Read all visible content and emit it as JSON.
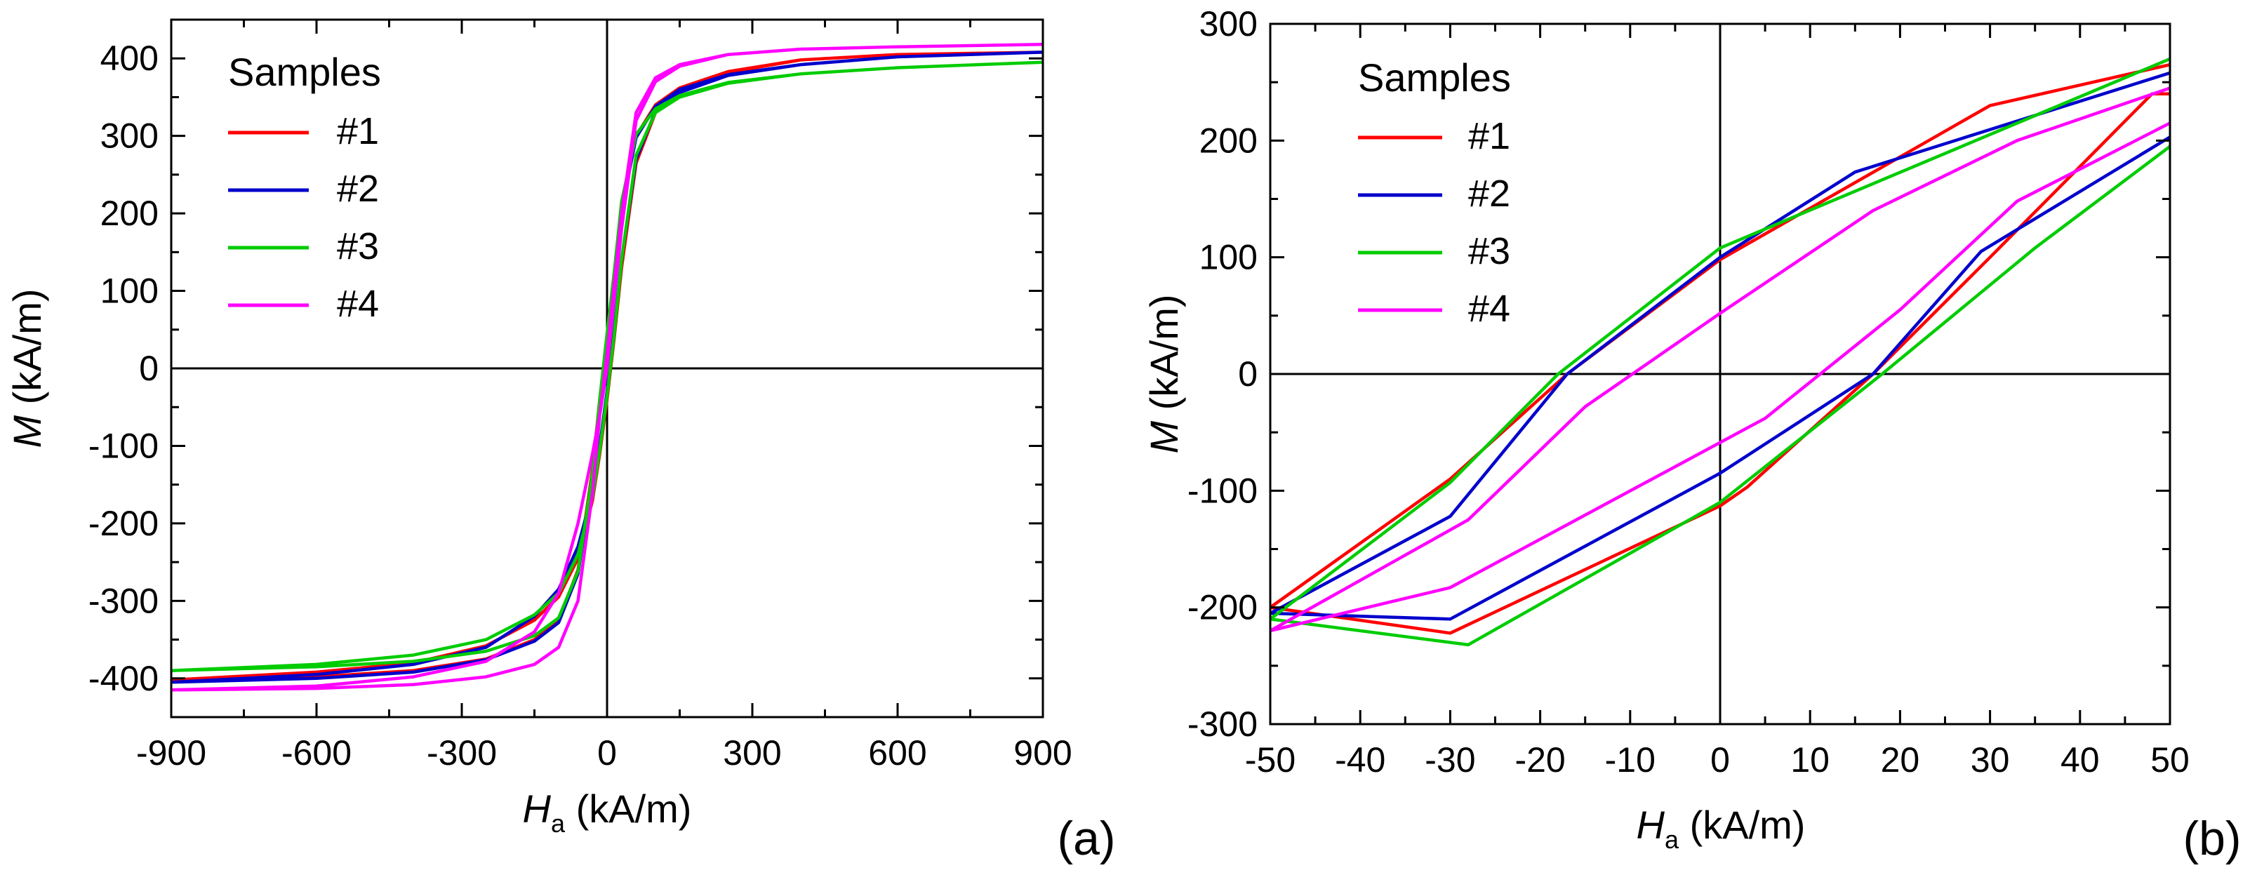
{
  "chart_data": [
    {
      "id": "a",
      "type": "line",
      "panel_label": "(a)",
      "title": "",
      "xlabel_main": "H",
      "xlabel_sub": "a",
      "xlabel_unit": " (kA/m)",
      "ylabel_main": "M",
      "ylabel_unit": " (kA/m)",
      "xlim": [
        -900,
        900
      ],
      "ylim": [
        -450,
        450
      ],
      "xticks": [
        -900,
        -600,
        -300,
        0,
        300,
        600,
        900
      ],
      "yticks": [
        -400,
        -300,
        -200,
        -100,
        0,
        100,
        200,
        300,
        400
      ],
      "xtick_labels": [
        "-900",
        "-600",
        "-300",
        "0",
        "300",
        "600",
        "900"
      ],
      "ytick_labels": [
        "-400",
        "-300",
        "-200",
        "-100",
        "0",
        "100",
        "200",
        "300",
        "400"
      ],
      "legend": {
        "title": "Samples",
        "position": "top-left"
      },
      "series": [
        {
          "name": "#1",
          "color": "#ff0000",
          "x": [
            -900,
            -600,
            -400,
            -250,
            -150,
            -100,
            -60,
            -30,
            -15,
            0,
            15,
            30,
            60,
            100,
            150,
            250,
            400,
            600,
            900,
            600,
            400,
            250,
            150,
            100,
            60,
            30,
            15,
            0,
            -15,
            -30,
            -60,
            -100,
            -150,
            -250,
            -400,
            -600,
            -900
          ],
          "y": [
            -402,
            -392,
            -380,
            -358,
            -325,
            -295,
            -245,
            -170,
            -110,
            -40,
            40,
            130,
            265,
            330,
            358,
            382,
            398,
            405,
            408,
            405,
            398,
            383,
            362,
            340,
            300,
            210,
            120,
            40,
            -40,
            -130,
            -260,
            -325,
            -350,
            -375,
            -390,
            -398,
            -402
          ]
        },
        {
          "name": "#2",
          "color": "#0000cc",
          "x": [
            -900,
            -600,
            -400,
            -250,
            -150,
            -100,
            -60,
            -30,
            -15,
            0,
            15,
            30,
            60,
            100,
            150,
            250,
            400,
            600,
            900,
            600,
            400,
            250,
            150,
            100,
            60,
            30,
            15,
            0,
            -15,
            -30,
            -60,
            -100,
            -150,
            -250,
            -400,
            -600,
            -900
          ],
          "y": [
            -405,
            -395,
            -382,
            -360,
            -320,
            -285,
            -230,
            -160,
            -100,
            -30,
            50,
            140,
            270,
            332,
            356,
            378,
            392,
            402,
            408,
            402,
            392,
            379,
            360,
            338,
            298,
            205,
            115,
            35,
            -45,
            -140,
            -265,
            -328,
            -352,
            -376,
            -392,
            -400,
            -405
          ]
        },
        {
          "name": "#3",
          "color": "#00cc00",
          "x": [
            -900,
            -600,
            -400,
            -250,
            -150,
            -100,
            -60,
            -30,
            -15,
            0,
            15,
            30,
            60,
            100,
            150,
            250,
            400,
            600,
            900,
            600,
            400,
            250,
            150,
            100,
            60,
            30,
            15,
            0,
            -15,
            -30,
            -60,
            -100,
            -150,
            -250,
            -400,
            -600,
            -900
          ],
          "y": [
            -390,
            -382,
            -370,
            -350,
            -318,
            -290,
            -240,
            -165,
            -105,
            -35,
            45,
            140,
            275,
            330,
            350,
            368,
            380,
            388,
            395,
            388,
            380,
            369,
            352,
            335,
            302,
            215,
            125,
            45,
            -40,
            -135,
            -262,
            -322,
            -345,
            -365,
            -378,
            -385,
            -390
          ]
        },
        {
          "name": "#4",
          "color": "#ff00ff",
          "x": [
            -900,
            -600,
            -400,
            -250,
            -150,
            -100,
            -60,
            -30,
            -15,
            0,
            15,
            30,
            60,
            100,
            150,
            250,
            400,
            600,
            900,
            600,
            400,
            250,
            150,
            100,
            60,
            30,
            15,
            0,
            -15,
            -30,
            -60,
            -100,
            -150,
            -250,
            -400,
            -600,
            -900
          ],
          "y": [
            -415,
            -410,
            -398,
            -378,
            -340,
            -290,
            -200,
            -110,
            -60,
            0,
            90,
            180,
            320,
            370,
            390,
            405,
            412,
            415,
            418,
            415,
            412,
            405,
            392,
            375,
            330,
            200,
            110,
            20,
            -60,
            -160,
            -300,
            -360,
            -382,
            -398,
            -408,
            -413,
            -415
          ]
        }
      ]
    },
    {
      "id": "b",
      "type": "line",
      "panel_label": "(b)",
      "title": "",
      "xlabel_main": "H",
      "xlabel_sub": "a",
      "xlabel_unit": " (kA/m)",
      "ylabel_main": "M",
      "ylabel_unit": " (kA/m)",
      "xlim": [
        -50,
        50
      ],
      "ylim": [
        -300,
        300
      ],
      "xticks": [
        -50,
        -40,
        -30,
        -20,
        -10,
        0,
        10,
        20,
        30,
        40,
        50
      ],
      "yticks": [
        -300,
        -200,
        -100,
        0,
        100,
        200,
        300
      ],
      "xtick_labels": [
        "-50",
        "-40",
        "-30",
        "-20",
        "-10",
        "0",
        "10",
        "20",
        "30",
        "40",
        "50"
      ],
      "ytick_labels": [
        "-300",
        "-200",
        "-100",
        "0",
        "100",
        "200",
        "300"
      ],
      "legend": {
        "title": "Samples",
        "position": "top-left"
      },
      "series": [
        {
          "name": "#1",
          "color": "#ff0000",
          "x": [
            50,
            30,
            0,
            -17,
            -30,
            -50,
            -30,
            0,
            3,
            17,
            30,
            48,
            50
          ],
          "y": [
            265,
            230,
            98,
            0,
            -90,
            -200,
            -222,
            -113,
            -97,
            0,
            100,
            240,
            240
          ]
        },
        {
          "name": "#2",
          "color": "#0000cc",
          "x": [
            50,
            15,
            0,
            -17,
            -30,
            -50,
            -30,
            0,
            17,
            29,
            50
          ],
          "y": [
            258,
            173,
            100,
            0,
            -122,
            -205,
            -210,
            -85,
            0,
            105,
            203
          ]
        },
        {
          "name": "#3",
          "color": "#00cc00",
          "x": [
            50,
            0,
            -18,
            -30,
            -50,
            -28,
            0,
            18,
            35,
            50
          ],
          "y": [
            270,
            108,
            0,
            -93,
            -210,
            -232,
            -110,
            0,
            108,
            195
          ]
        },
        {
          "name": "#4",
          "color": "#ff00ff",
          "x": [
            50,
            33,
            17,
            0,
            -15,
            -28,
            -50,
            -30,
            5,
            20,
            33,
            50
          ],
          "y": [
            245,
            200,
            140,
            52,
            -28,
            -125,
            -220,
            -183,
            -38,
            55,
            148,
            215
          ]
        }
      ]
    }
  ]
}
